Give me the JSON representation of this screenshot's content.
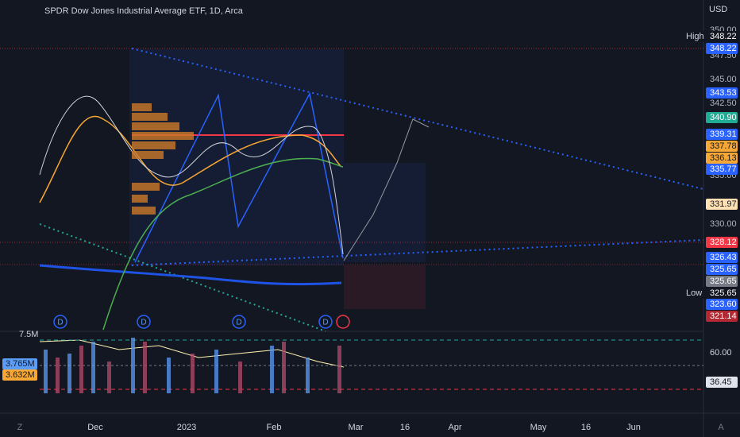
{
  "header": {
    "title": "SPDR Dow Jones Industrial Average ETF, 1D, Arca",
    "currency": "USD"
  },
  "price_axis": {
    "ticks": [
      "350.00",
      "347.50",
      "345.00",
      "342.50",
      "335.00",
      "330.00"
    ]
  },
  "price_tags": [
    {
      "caption": "High",
      "label": "348.22",
      "color": "#131722",
      "text_color": "#ffffff"
    },
    {
      "label": "348.22",
      "color": "#2962ff",
      "text_color": "#ffffff"
    },
    {
      "label": "343.53",
      "color": "#2962ff",
      "text_color": "#ffffff"
    },
    {
      "label": "340.90",
      "color": "#22ab94",
      "text_color": "#ffffff"
    },
    {
      "label": "339.31",
      "color": "#2962ff",
      "text_color": "#ffffff"
    },
    {
      "label": "337.78",
      "color": "#f7a733",
      "text_color": "#131722"
    },
    {
      "label": "336.13",
      "color": "#f7a733",
      "text_color": "#131722"
    },
    {
      "label": "335.77",
      "color": "#2962ff",
      "text_color": "#ffffff"
    },
    {
      "label": "331.97",
      "color": "#ffe0b2",
      "text_color": "#131722"
    },
    {
      "label": "328.12",
      "color": "#f23645",
      "text_color": "#ffffff"
    },
    {
      "label": "326.43",
      "color": "#2962ff",
      "text_color": "#ffffff"
    },
    {
      "label": "325.65",
      "color": "#2962ff",
      "text_color": "#ffffff"
    },
    {
      "label": "325.65",
      "color": "#787b86",
      "text_color": "#ffffff"
    },
    {
      "caption": "Low",
      "label": "325.65",
      "color": "#131722",
      "text_color": "#ffffff"
    },
    {
      "label": "323.60",
      "color": "#2962ff",
      "text_color": "#ffffff"
    },
    {
      "label": "321.14",
      "color": "#b22833",
      "text_color": "#ffffff"
    }
  ],
  "volume_pane": {
    "scale": "7.5M",
    "values": [
      {
        "label": "3.765M",
        "color": "#5b9cf6"
      },
      {
        "label": "3.632M",
        "color": "#f7a733"
      }
    ]
  },
  "rsi_pane": {
    "ticks": [
      "60.00"
    ],
    "value": "36.45"
  },
  "time_axis": [
    "Dec",
    "2023",
    "Feb",
    "Mar",
    "16",
    "Apr",
    "May",
    "16",
    "Jun"
  ],
  "dividend_markers": [
    "D",
    "D",
    "D",
    "D"
  ],
  "corner_buttons": [
    "Z",
    "A"
  ]
}
